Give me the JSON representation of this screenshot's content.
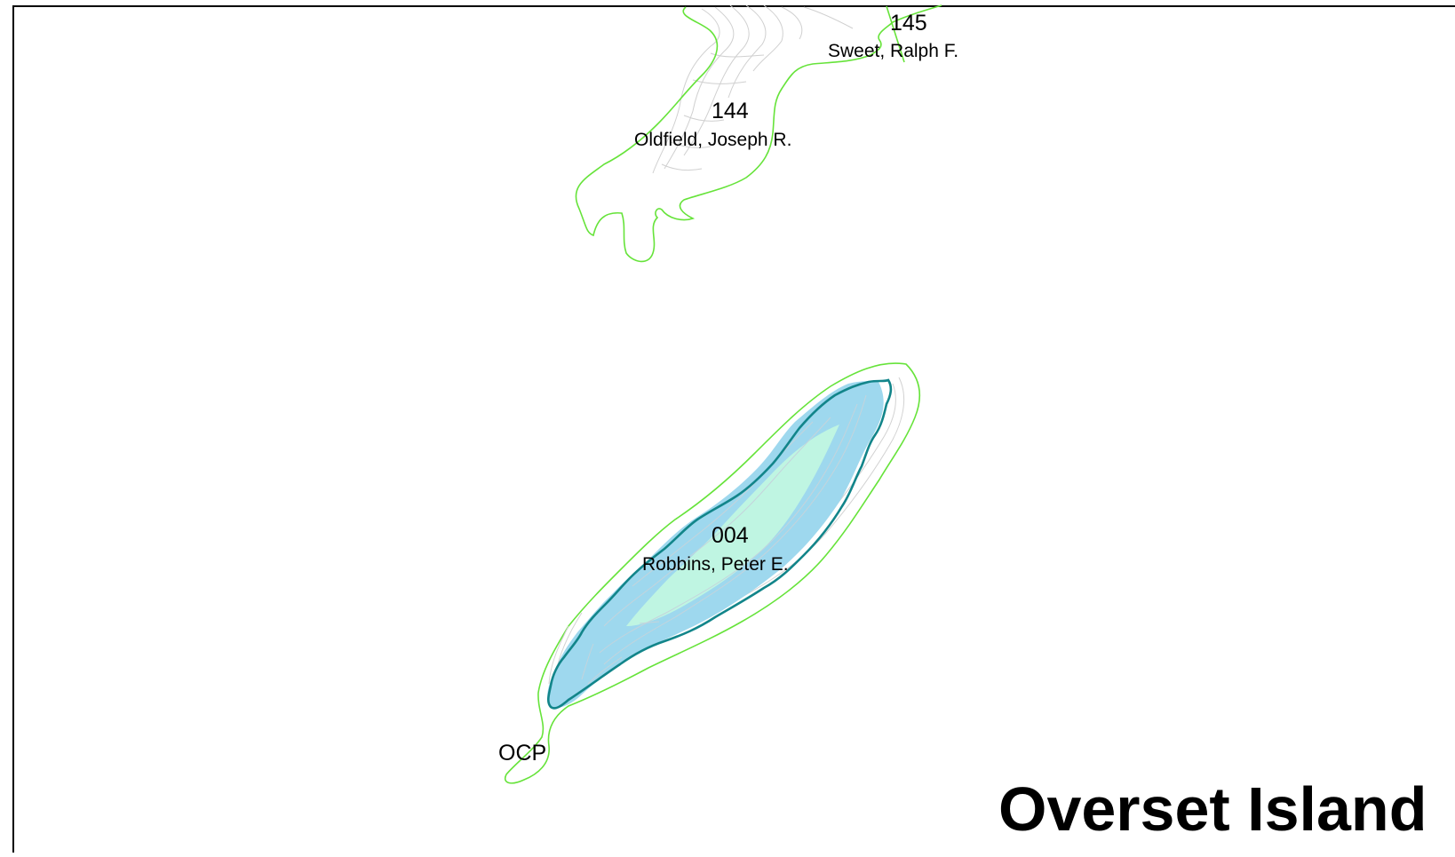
{
  "map": {
    "title": "Overset Island",
    "colors": {
      "parcel_boundary": "#66e33a",
      "contour": "#c8c8c8",
      "shore_outline": "#12858a",
      "water_fill": "#9ed8ee",
      "high_ground_fill": "#bff5e2",
      "frame": "#000000"
    },
    "parcels": [
      {
        "number": "145",
        "owner": "Sweet, Ralph F."
      },
      {
        "number": "144",
        "owner": "Oldfield, Joseph R."
      },
      {
        "number": "004",
        "owner": "Robbins, Peter E."
      }
    ],
    "ocp_label": "OCP"
  }
}
